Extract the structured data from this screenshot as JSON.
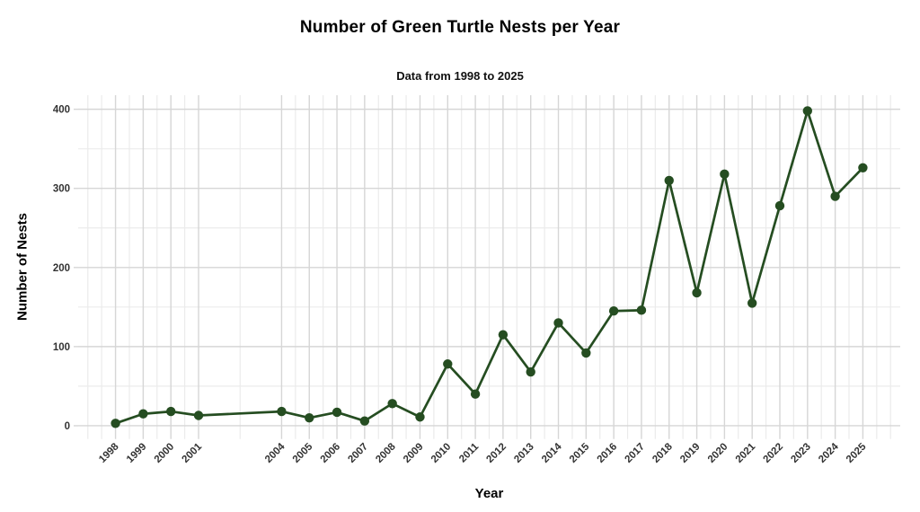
{
  "chart_data": {
    "type": "line",
    "title": "Number of Green Turtle Nests per Year",
    "subtitle": "Data from 1998 to 2025",
    "xlabel": "Year",
    "ylabel": "Number of Nests",
    "x": [
      1998,
      1999,
      2000,
      2001,
      2004,
      2005,
      2006,
      2007,
      2008,
      2009,
      2010,
      2011,
      2012,
      2013,
      2014,
      2015,
      2016,
      2017,
      2018,
      2019,
      2020,
      2021,
      2022,
      2023,
      2024,
      2025
    ],
    "y": [
      3,
      15,
      18,
      13,
      18,
      10,
      17,
      6,
      28,
      11,
      78,
      40,
      115,
      68,
      130,
      92,
      145,
      146,
      310,
      168,
      318,
      155,
      278,
      398,
      290,
      326
    ],
    "x_tick_labels": [
      "1998",
      "1999",
      "2000",
      "2001",
      "2004",
      "2005",
      "2006",
      "2007",
      "2008",
      "2009",
      "2010",
      "2011",
      "2012",
      "2013",
      "2014",
      "2015",
      "2016",
      "2017",
      "2018",
      "2019",
      "2020",
      "2021",
      "2022",
      "2023",
      "2024",
      "2025"
    ],
    "y_ticks": [
      0,
      100,
      200,
      300,
      400
    ],
    "y_tick_labels": [
      "0",
      "100",
      "200",
      "300",
      "400"
    ],
    "y_minor": [
      50,
      150,
      250,
      350
    ],
    "x_minor": [
      1997,
      1997.5,
      1998.5,
      1999.5,
      2000.5,
      2002.5,
      2004.5,
      2005.5,
      2006.5,
      2007.5,
      2008.5,
      2009.5,
      2010.5,
      2011.5,
      2012.5,
      2013.5,
      2014.5,
      2015.5,
      2016.5,
      2017.5,
      2018.5,
      2019.5,
      2020.5,
      2021.5,
      2022.5,
      2023.5,
      2024.5,
      2025.5,
      2026
    ],
    "xlim": [
      1996.65,
      2026.35
    ],
    "ylim": [
      -16.75,
      417.75
    ],
    "grid": true,
    "legend": "none",
    "marker": "circle",
    "colors": {
      "line": "#254d21",
      "point": "#254d21",
      "grid_major": "#d6d6d6",
      "grid_minor": "#ebebeb",
      "tick_text": "#333333",
      "background": "#ffffff"
    }
  }
}
